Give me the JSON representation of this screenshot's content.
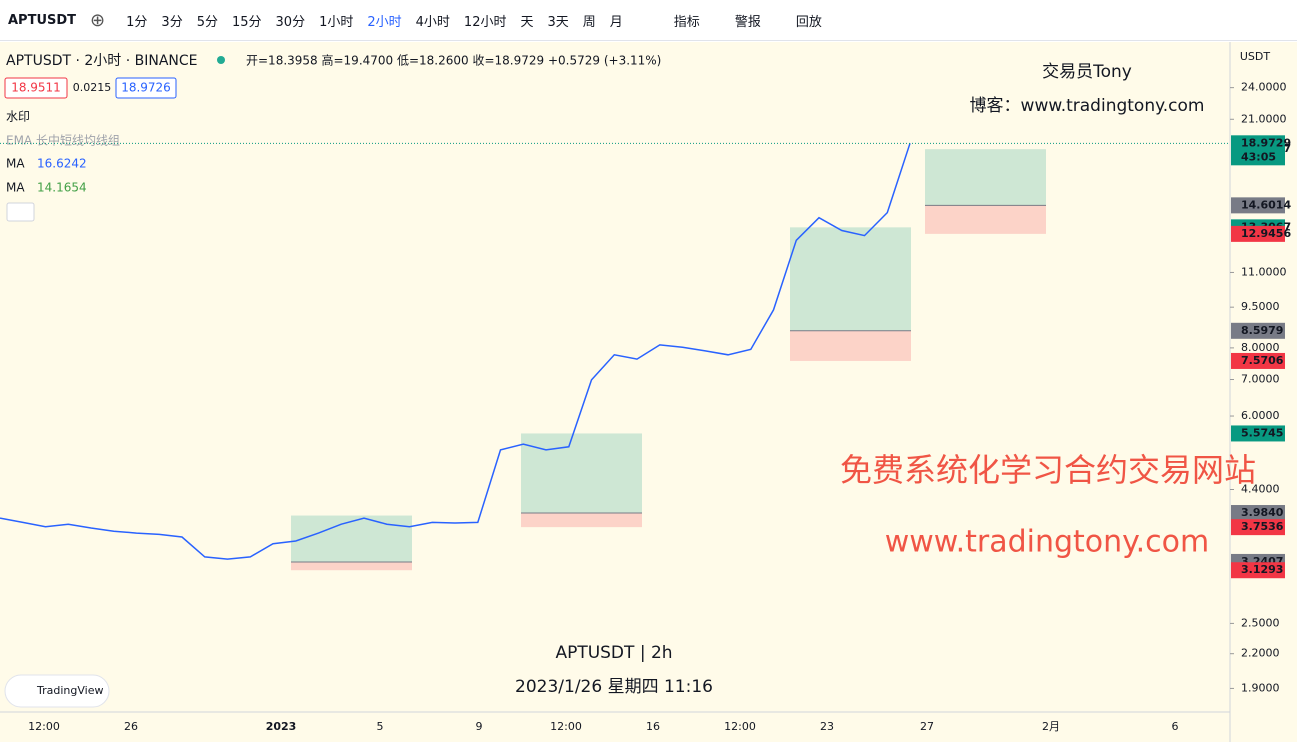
{
  "toolbar": {
    "symbol": "APTUSDT",
    "intervals": [
      "1分",
      "3分",
      "5分",
      "15分",
      "30分",
      "1小时",
      "2小时",
      "4小时",
      "12小时",
      "天",
      "3天",
      "周",
      "月"
    ],
    "tools": [
      "指标",
      "警报",
      "回放"
    ]
  },
  "legend": {
    "title": "APTUSDT · 2小时 · BINANCE",
    "ohlc": "开=18.3958 高=19.4700 低=18.2600 收=18.9729 +0.5729 (+3.11%)",
    "bid": "18.9511",
    "spread": "0.0215",
    "ask": "18.9726",
    "watermark_label": "水印",
    "ema_label": "EMA 长中短线均线组",
    "ma": [
      {
        "name": "MA",
        "value": "16.6242"
      },
      {
        "name": "MA",
        "value": "14.1654"
      }
    ]
  },
  "watermark": {
    "author": "交易员Tony",
    "blog": "博客：www.tradingtony.com",
    "slogan": "免费系统化学习合约交易网站",
    "url": "www.tradingtony.com",
    "symbol": "APTUSDT | 2h",
    "date": "2023/1/26 星期四 11:16",
    "brand": "TradingView"
  },
  "chart_data": {
    "type": "line",
    "currency": "USDT",
    "log_scale": true,
    "color": "#2962ff",
    "ylim": [
      1.72,
      29.1
    ],
    "yticks": [
      {
        "value": 24,
        "label": "24.0000"
      },
      {
        "value": 21,
        "label": "21.0000"
      },
      {
        "value": 11,
        "label": "11.0000"
      },
      {
        "value": 9.5,
        "label": "9.5000"
      },
      {
        "value": 8,
        "label": "8.0000"
      },
      {
        "value": 7,
        "label": "7.0000"
      },
      {
        "value": 6,
        "label": "6.0000"
      },
      {
        "value": 4.4,
        "label": "4.4000"
      },
      {
        "value": 2.5,
        "label": "2.5000"
      },
      {
        "value": 2.2,
        "label": "2.2000"
      },
      {
        "value": 1.9,
        "label": "1.9000"
      }
    ],
    "time_labels": [
      "12:00",
      "26",
      "2023",
      "5",
      "9",
      "12:00",
      "16",
      "12:00",
      "23",
      "27",
      "2月",
      "6"
    ],
    "values": [
      3.9,
      3.83,
      3.76,
      3.8,
      3.74,
      3.69,
      3.66,
      3.64,
      3.6,
      3.31,
      3.28,
      3.31,
      3.5,
      3.54,
      3.66,
      3.8,
      3.9,
      3.8,
      3.76,
      3.83,
      3.82,
      3.83,
      5.2,
      5.33,
      5.2,
      5.27,
      6.99,
      7.77,
      7.63,
      8.1,
      8.02,
      7.9,
      7.77,
      7.95,
      9.39,
      12.6,
      13.86,
      13.13,
      12.85,
      14.16,
      18.9729
    ],
    "last_price": 18.9729,
    "countdown": "43:05",
    "positions": [
      {
        "target": 3.9419,
        "entry": 3.2407,
        "stop": 3.1293
      },
      {
        "target": 5.5745,
        "entry": {
          "value": 3.984,
          "label": "3.9840"
        },
        "stop": 3.7536
      },
      {
        "target": 13.3067,
        "entry": 8.5979,
        "stop": 7.5706
      },
      {
        "target": 18.5117,
        "entry": 14.6014,
        "stop": 12.9456
      }
    ]
  }
}
